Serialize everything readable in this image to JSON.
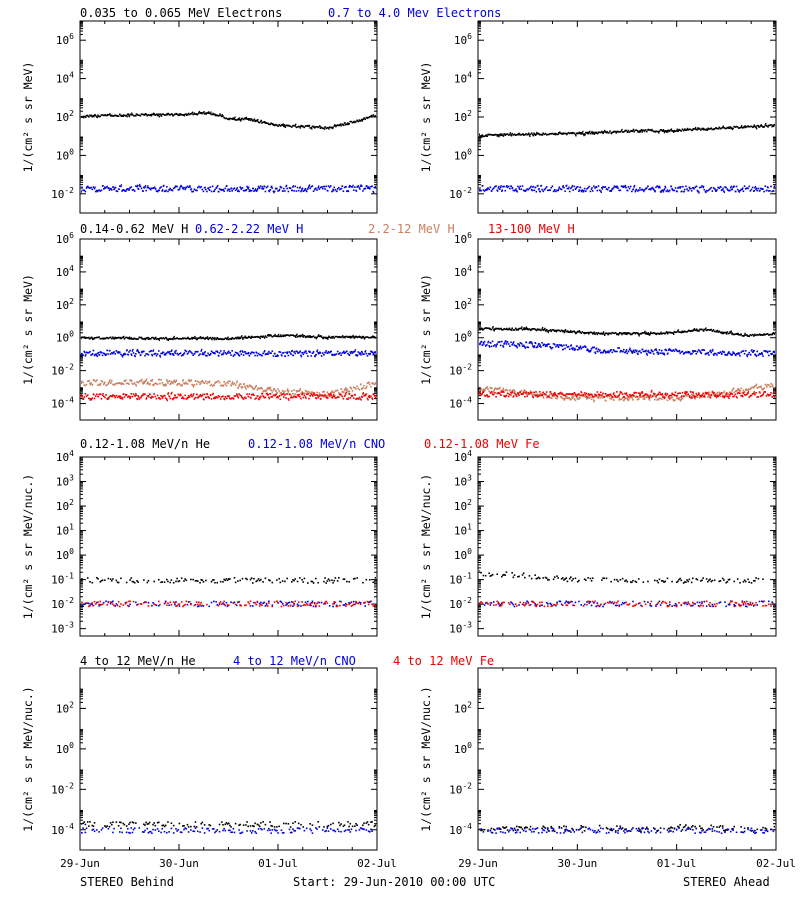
{
  "colors": {
    "black": "#000000",
    "blue": "#0000dd",
    "tan": "#c88060",
    "red": "#ee0000"
  },
  "footer": {
    "left": "STEREO Behind",
    "center": "Start: 29-Jun-2010 00:00 UTC",
    "right": "STEREO Ahead"
  },
  "time_axis": {
    "ticks": [
      "29-Jun",
      "30-Jun",
      "01-Jul",
      "02-Jul"
    ],
    "range_days": [
      0,
      3
    ]
  },
  "chart_data": [
    {
      "type": "scatter",
      "row": 1,
      "spacecraft": "STEREO Behind",
      "ylabel": "1/(cm² s sr MeV)",
      "yscale": "log",
      "ylim_exp": [
        -3,
        7
      ],
      "ytick_exps": [
        -2,
        0,
        2,
        4,
        6
      ],
      "series": [
        {
          "name": "0.035 to 0.065 MeV Electrons",
          "color": "#000000",
          "x": [
            0,
            0.5,
            1.0,
            1.3,
            1.5,
            1.7,
            2.0,
            2.2,
            2.5,
            2.8,
            3.0
          ],
          "y": [
            120,
            140,
            150,
            180,
            90,
            80,
            40,
            35,
            30,
            70,
            150
          ]
        },
        {
          "name": "0.7 to 4.0 Mev Electrons",
          "color": "#0000dd",
          "x": [
            0,
            1,
            2,
            3
          ],
          "y": [
            0.02,
            0.02,
            0.02,
            0.02
          ]
        }
      ]
    },
    {
      "type": "scatter",
      "row": 1,
      "spacecraft": "STEREO Ahead",
      "ylabel": "1/(cm² s sr MeV)",
      "yscale": "log",
      "ylim_exp": [
        -3,
        7
      ],
      "ytick_exps": [
        -2,
        0,
        2,
        4,
        6
      ],
      "series": [
        {
          "name": "0.035 to 0.065 MeV Electrons",
          "color": "#000000",
          "x": [
            0,
            0.5,
            1.0,
            1.5,
            2.0,
            2.5,
            3.0
          ],
          "y": [
            12,
            14,
            15,
            20,
            22,
            30,
            40
          ]
        },
        {
          "name": "0.7 to 4.0 Mev Electrons",
          "color": "#0000dd",
          "x": [
            0,
            1,
            2,
            3
          ],
          "y": [
            0.02,
            0.02,
            0.02,
            0.02
          ]
        }
      ]
    },
    {
      "type": "scatter",
      "row": 2,
      "spacecraft": "STEREO Behind",
      "ylabel": "1/(cm² s sr MeV)",
      "yscale": "log",
      "ylim_exp": [
        -5,
        6
      ],
      "ytick_exps": [
        -4,
        -2,
        0,
        2,
        4,
        6
      ],
      "series": [
        {
          "name": "0.14-0.62 MeV H",
          "color": "#000000",
          "x": [
            0,
            1,
            1.5,
            2.0,
            2.5,
            3.0
          ],
          "y": [
            1.1,
            1.0,
            1.0,
            1.5,
            1.2,
            1.2
          ]
        },
        {
          "name": "0.62-2.22 MeV H",
          "color": "#0000dd",
          "x": [
            0,
            1,
            2,
            3
          ],
          "y": [
            0.13,
            0.13,
            0.12,
            0.12
          ]
        },
        {
          "name": "2.2-12 MeV H",
          "color": "#c88060",
          "x": [
            0,
            0.7,
            1.5,
            2.0,
            2.5,
            3.0
          ],
          "y": [
            0.002,
            0.0022,
            0.0018,
            0.0006,
            0.0004,
            0.002
          ]
        },
        {
          "name": "13-100 MeV H",
          "color": "#ee0000",
          "x": [
            0,
            1,
            2,
            3
          ],
          "y": [
            0.0003,
            0.0003,
            0.0003,
            0.0003
          ]
        }
      ]
    },
    {
      "type": "scatter",
      "row": 2,
      "spacecraft": "STEREO Ahead",
      "ylabel": "1/(cm² s sr MeV)",
      "yscale": "log",
      "ylim_exp": [
        -5,
        6
      ],
      "ytick_exps": [
        -4,
        -2,
        0,
        2,
        4,
        6
      ],
      "series": [
        {
          "name": "0.14-0.62 MeV H",
          "color": "#000000",
          "x": [
            0,
            0.6,
            1.2,
            1.8,
            2.3,
            2.7,
            3.0
          ],
          "y": [
            4,
            3.5,
            2,
            2,
            3.5,
            1.5,
            2
          ]
        },
        {
          "name": "0.62-2.22 MeV H",
          "color": "#0000dd",
          "x": [
            0,
            0.6,
            1.2,
            2.0,
            3.0
          ],
          "y": [
            0.5,
            0.4,
            0.2,
            0.15,
            0.12
          ]
        },
        {
          "name": "2.2-12 MeV H",
          "color": "#c88060",
          "x": [
            0,
            1,
            2,
            2.5,
            3.0
          ],
          "y": [
            0.0008,
            0.00025,
            0.00025,
            0.0005,
            0.0015
          ]
        },
        {
          "name": "13-100 MeV H",
          "color": "#ee0000",
          "x": [
            0,
            1,
            2,
            3
          ],
          "y": [
            0.0004,
            0.0004,
            0.0004,
            0.0004
          ]
        }
      ]
    },
    {
      "type": "scatter",
      "row": 3,
      "spacecraft": "STEREO Behind",
      "ylabel": "1/(cm² s sr MeV/nuc.)",
      "yscale": "log",
      "ylim_exp": [
        -3.3,
        4
      ],
      "ytick_exps": [
        -3,
        -2,
        -1,
        0,
        1,
        2,
        3,
        4
      ],
      "series": [
        {
          "name": "0.12-1.08 MeV/n He",
          "color": "#000000",
          "x": [
            0,
            1,
            2,
            3
          ],
          "y": [
            0.1,
            0.1,
            0.1,
            0.1
          ]
        },
        {
          "name": "0.12-1.08 MeV/n CNO",
          "color": "#0000dd",
          "x": [
            0,
            1,
            2,
            3
          ],
          "y": [
            0.011,
            0.011,
            0.011,
            0.011
          ]
        },
        {
          "name": "0.12-1.08 MeV Fe",
          "color": "#ee0000",
          "x": [
            0,
            1,
            2,
            3
          ],
          "y": [
            0.011,
            0.011,
            0.011,
            0.011
          ]
        }
      ]
    },
    {
      "type": "scatter",
      "row": 3,
      "spacecraft": "STEREO Ahead",
      "ylabel": "1/(cm² s sr MeV/nuc.)",
      "yscale": "log",
      "ylim_exp": [
        -3.3,
        4
      ],
      "ytick_exps": [
        -3,
        -2,
        -1,
        0,
        1,
        2,
        3,
        4
      ],
      "series": [
        {
          "name": "0.12-1.08 MeV/n He",
          "color": "#000000",
          "x": [
            0,
            0.5,
            1,
            2,
            3
          ],
          "y": [
            0.2,
            0.15,
            0.1,
            0.1,
            0.1
          ]
        },
        {
          "name": "0.12-1.08 MeV/n CNO",
          "color": "#0000dd",
          "x": [
            0,
            1,
            2,
            3
          ],
          "y": [
            0.011,
            0.011,
            0.011,
            0.011
          ]
        },
        {
          "name": "0.12-1.08 MeV Fe",
          "color": "#ee0000",
          "x": [
            0,
            1,
            2,
            3
          ],
          "y": [
            0.011,
            0.011,
            0.011,
            0.011
          ]
        }
      ]
    },
    {
      "type": "scatter",
      "row": 4,
      "spacecraft": "STEREO Behind",
      "ylabel": "1/(cm² s sr MeV/nuc.)",
      "yscale": "log",
      "ylim_exp": [
        -5,
        4
      ],
      "ytick_exps": [
        -4,
        -2,
        0,
        2
      ],
      "series": [
        {
          "name": "4 to 12 MeV/n He",
          "color": "#000000",
          "x": [
            0,
            1,
            2,
            3
          ],
          "y": [
            0.0002,
            0.0002,
            0.0002,
            0.0002
          ]
        },
        {
          "name": "4 to 12 MeV/n CNO",
          "color": "#0000dd",
          "x": [
            0,
            1,
            2,
            3
          ],
          "y": [
            0.0001,
            0.0001,
            0.0001,
            0.0001
          ]
        },
        {
          "name": "4 to 12 MeV Fe",
          "color": "#ee0000",
          "x": [],
          "y": []
        }
      ]
    },
    {
      "type": "scatter",
      "row": 4,
      "spacecraft": "STEREO Ahead",
      "ylabel": "1/(cm² s sr MeV/nuc.)",
      "yscale": "log",
      "ylim_exp": [
        -5,
        4
      ],
      "ytick_exps": [
        -4,
        -2,
        0,
        2
      ],
      "series": [
        {
          "name": "4 to 12 MeV/n He",
          "color": "#000000",
          "x": [
            0.3,
            0.8,
            1.2,
            1.6,
            2.0,
            2.4,
            2.8
          ],
          "y": [
            0.00012,
            0.00012,
            0.00013,
            0.00012,
            0.00015,
            0.00013,
            0.00012
          ]
        },
        {
          "name": "4 to 12 MeV/n CNO",
          "color": "#0000dd",
          "x": [
            0,
            1,
            2,
            3
          ],
          "y": [
            0.0001,
            0.0001,
            0.0001,
            0.0001
          ]
        },
        {
          "name": "4 to 12 MeV Fe",
          "color": "#ee0000",
          "x": [],
          "y": []
        }
      ]
    }
  ]
}
